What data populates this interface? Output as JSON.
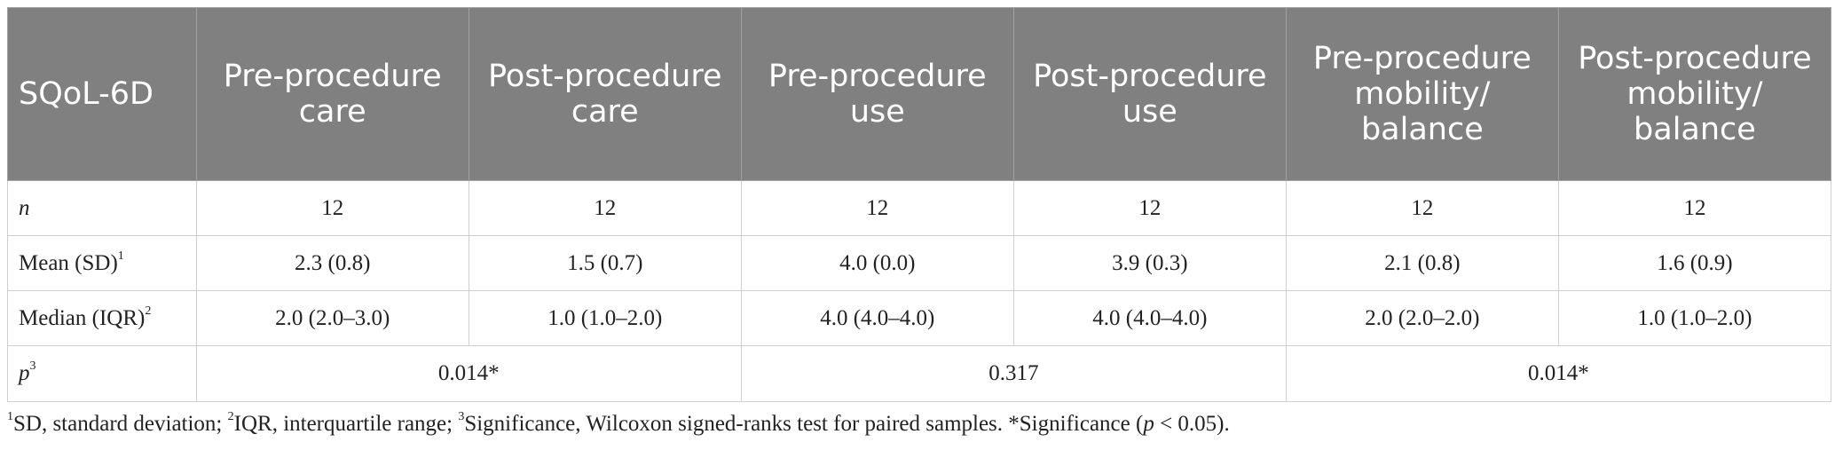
{
  "table": {
    "headers": [
      "SQoL-6D",
      "Pre-procedure care",
      "Post-procedure care",
      "Pre-procedure use",
      "Post-procedure use",
      "Pre-procedure mobility/ balance",
      "Post-procedure mobility/ balance"
    ],
    "rows": [
      {
        "label": "n",
        "label_sup": "",
        "values": [
          "12",
          "12",
          "12",
          "12",
          "12",
          "12"
        ]
      },
      {
        "label": "Mean (SD)",
        "label_sup": "1",
        "values": [
          "2.3 (0.8)",
          "1.5 (0.7)",
          "4.0 (0.0)",
          "3.9 (0.3)",
          "2.1 (0.8)",
          "1.6 (0.9)"
        ]
      },
      {
        "label": "Median (IQR)",
        "label_sup": "2",
        "values": [
          "2.0 (2.0–3.0)",
          "1.0 (1.0–2.0)",
          "4.0 (4.0–4.0)",
          "4.0 (4.0–4.0)",
          "2.0 (2.0–2.0)",
          "1.0 (1.0–2.0)"
        ]
      }
    ],
    "p_row": {
      "label": "p",
      "label_sup": "3",
      "values": [
        "0.014*",
        "0.317",
        "0.014*"
      ]
    }
  },
  "footnote": {
    "sup1": "1",
    "part1": "SD, standard deviation; ",
    "sup2": "2",
    "part2": "IQR, interquartile range; ",
    "sup3": "3",
    "part3": "Significance, Wilcoxon signed-ranks test for paired samples. *Significance (",
    "p": "p",
    "part4": " < 0.05)."
  },
  "colors": {
    "header_bg": "#808080",
    "header_text": "#ffffff",
    "border": "#cfcfcf"
  }
}
